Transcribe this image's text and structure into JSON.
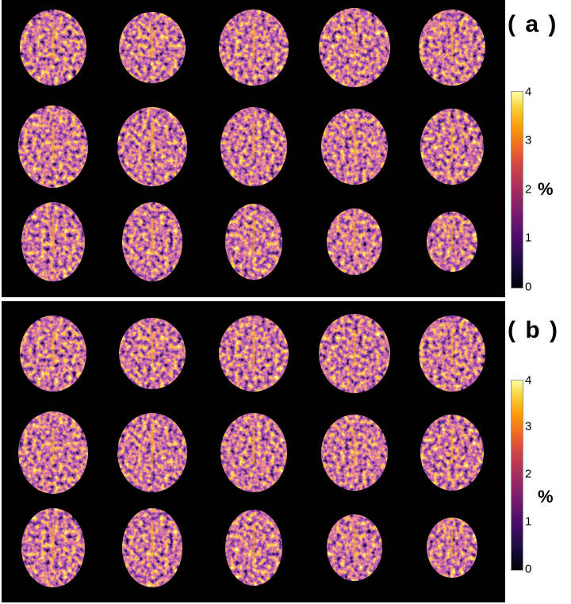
{
  "panels": [
    {
      "label": "( a )",
      "colorbar": {
        "ticks": [
          "0",
          "1",
          "2",
          "3",
          "4"
        ],
        "unit": "%",
        "range": [
          0,
          4
        ],
        "colormap": "inferno"
      },
      "grid": {
        "rows": 3,
        "cols": 5
      }
    },
    {
      "label": "( b )",
      "colorbar": {
        "ticks": [
          "0",
          "1",
          "2",
          "3",
          "4"
        ],
        "unit": "%",
        "range": [
          0,
          4
        ],
        "colormap": "inferno"
      },
      "grid": {
        "rows": 3,
        "cols": 5
      }
    }
  ],
  "colors": {
    "background": "#000000",
    "colormap_low": "#000004",
    "colormap_high": "#fcffa4"
  }
}
